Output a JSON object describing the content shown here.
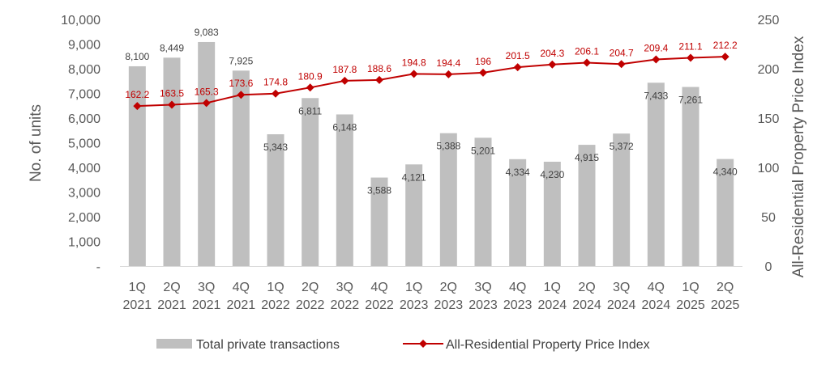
{
  "chart_data": {
    "type": "bar",
    "categories": [
      [
        "1Q",
        "2021"
      ],
      [
        "2Q",
        "2021"
      ],
      [
        "3Q",
        "2021"
      ],
      [
        "4Q",
        "2021"
      ],
      [
        "1Q",
        "2022"
      ],
      [
        "2Q",
        "2022"
      ],
      [
        "3Q",
        "2022"
      ],
      [
        "4Q",
        "2022"
      ],
      [
        "1Q",
        "2023"
      ],
      [
        "2Q",
        "2023"
      ],
      [
        "3Q",
        "2023"
      ],
      [
        "4Q",
        "2023"
      ],
      [
        "1Q",
        "2024"
      ],
      [
        "2Q",
        "2024"
      ],
      [
        "3Q",
        "2024"
      ],
      [
        "4Q",
        "2024"
      ],
      [
        "1Q",
        "2025"
      ],
      [
        "2Q",
        "2025"
      ]
    ],
    "series": [
      {
        "name": "Total private transactions",
        "type": "bar",
        "axis": "left",
        "values": [
          8100,
          8449,
          9083,
          7925,
          5343,
          6811,
          6148,
          3588,
          4121,
          5388,
          5201,
          4334,
          4230,
          4915,
          5372,
          7433,
          7261,
          4340
        ],
        "labels": [
          "8,100",
          "8,449",
          "9,083",
          "7,925",
          "5,343",
          "6,811",
          "6,148",
          "3,588",
          "4,121",
          "5,388",
          "5,201",
          "4,334",
          "4,230",
          "4,915",
          "5,372",
          "7,433",
          "7,261",
          "4,340"
        ],
        "color": "#bfbfbf"
      },
      {
        "name": "All-Residential Property Price Index",
        "type": "line",
        "axis": "right",
        "values": [
          162.2,
          163.5,
          165.3,
          173.6,
          174.8,
          180.9,
          187.8,
          188.6,
          194.8,
          194.4,
          196,
          201.5,
          204.3,
          206.1,
          204.7,
          209.4,
          211.1,
          212.2
        ],
        "labels": [
          "162.2",
          "163.5",
          "165.3",
          "173.6",
          "174.8",
          "180.9",
          "187.8",
          "188.6",
          "194.8",
          "194.4",
          "196",
          "201.5",
          "204.3",
          "206.1",
          "204.7",
          "209.4",
          "211.1",
          "212.2"
        ],
        "color": "#c00000",
        "marker": "diamond"
      }
    ],
    "y_left": {
      "label": "No. of units",
      "range": [
        0,
        10000
      ],
      "ticks": [
        "-",
        "1,000",
        "2,000",
        "3,000",
        "4,000",
        "5,000",
        "6,000",
        "7,000",
        "8,000",
        "9,000",
        "10,000"
      ]
    },
    "y_right": {
      "label": "All-Residential Property Price Index",
      "range": [
        0,
        250
      ],
      "ticks": [
        "0",
        "50",
        "100",
        "150",
        "200",
        "250"
      ]
    },
    "grid": false,
    "legend": "bottom"
  }
}
